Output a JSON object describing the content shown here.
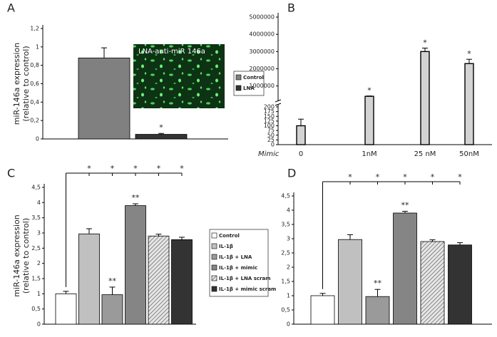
{
  "chart_data": [
    {
      "type": "bar",
      "panel": "A",
      "ylabel": [
        "miR-146a  expression",
        "(relative to control)"
      ],
      "ylim": [
        0,
        1.2
      ],
      "yticks": [
        0,
        {
          "value": 0.2,
          "label": "0,2"
        },
        {
          "value": 0.4,
          "label": "0,4"
        },
        {
          "value": 0.6,
          "label": "0,6"
        },
        {
          "value": 0.8,
          "label": "0,8"
        },
        1,
        {
          "value": 1.2,
          "label": "1,2"
        }
      ],
      "series": [
        {
          "name": "Control",
          "color": "#808080",
          "values": [
            0.88
          ],
          "errors": [
            0.11
          ]
        },
        {
          "name": "LNA",
          "color": "#333333",
          "values": [
            0.05
          ],
          "errors": [
            0.01
          ]
        }
      ],
      "annotations": [
        {
          "text": "*",
          "series": 1
        }
      ],
      "inset_label": "LNA-anti-miR 146a"
    },
    {
      "type": "broken-bar",
      "panel": "B",
      "xlabel": "Mimic",
      "categories": [
        "0",
        "1nM",
        "25 nM",
        "50nM"
      ],
      "values": [
        100,
        400000,
        3000000,
        2300000
      ],
      "errors": [
        35,
        20000,
        200000,
        250000
      ],
      "color": "#d3d3d3",
      "axis_break": {
        "lower": {
          "ylim": [
            0,
            200
          ],
          "yticks": [
            0,
            25,
            50,
            75,
            100,
            125,
            150,
            175,
            200
          ]
        },
        "upper": {
          "ylim": [
            200000,
            5000000
          ],
          "yticks": [
            1000000,
            2000000,
            3000000,
            4000000,
            5000000
          ]
        }
      },
      "annotations": [
        {
          "text": "*",
          "index": 1
        },
        {
          "text": "*",
          "index": 2
        },
        {
          "text": "*",
          "index": 3
        }
      ]
    },
    {
      "type": "bar",
      "panel": "C",
      "ylabel": [
        "miR-146a  expression",
        "(relative to control)"
      ],
      "ylim": [
        0,
        4.5
      ],
      "yticks": [
        0,
        {
          "value": 0.5,
          "label": "0,5"
        },
        1,
        {
          "value": 1.5,
          "label": "1,5"
        },
        2,
        {
          "value": 2.5,
          "label": "2,5"
        },
        3,
        {
          "value": 3.5,
          "label": "3,5"
        },
        4,
        {
          "value": 4.5,
          "label": "4,5"
        }
      ],
      "series": [
        {
          "name": "Control",
          "color": "#ffffff",
          "values": [
            1.0
          ],
          "errors": [
            0.08
          ]
        },
        {
          "name": "IL-1β",
          "color": "#c0c0c0",
          "values": [
            2.97
          ],
          "errors": [
            0.17
          ]
        },
        {
          "name": "IL-1β + LNA",
          "color": "#9a9a9a",
          "values": [
            0.97
          ],
          "errors": [
            0.25
          ]
        },
        {
          "name": "IL-1β + mimic",
          "color": "#858585",
          "values": [
            3.9
          ],
          "errors": [
            0.06
          ]
        },
        {
          "name": "IL-1β + LNA scram",
          "color": "#bdbdbd",
          "hatch": true,
          "values": [
            2.9
          ],
          "errors": [
            0.06
          ]
        },
        {
          "name": "IL-1β + mimic scram",
          "color": "#333333",
          "values": [
            2.78
          ],
          "errors": [
            0.08
          ]
        }
      ],
      "annotations": [
        {
          "text": "**",
          "series": 2
        },
        {
          "text": "**",
          "series": 3
        }
      ],
      "comparisons": {
        "reference": 0,
        "targets": [
          {
            "series": 1,
            "text": "*"
          },
          {
            "series": 2,
            "text": "*"
          },
          {
            "series": 3,
            "text": "*"
          },
          {
            "series": 4,
            "text": "*"
          },
          {
            "series": 5,
            "text": "*"
          }
        ]
      }
    },
    {
      "type": "bar",
      "panel": "D",
      "ylim": [
        0,
        4.5
      ],
      "yticks": [
        0,
        {
          "value": 0.5,
          "label": "0,5"
        },
        1,
        {
          "value": 1.5,
          "label": "1,5"
        },
        2,
        {
          "value": 2.5,
          "label": "2,5"
        },
        3,
        {
          "value": 3.5,
          "label": "3,5"
        },
        4,
        {
          "value": 4.5,
          "label": "4,5"
        }
      ],
      "series": [
        {
          "color": "#ffffff",
          "values": [
            1.0
          ],
          "errors": [
            0.08
          ]
        },
        {
          "color": "#c0c0c0",
          "values": [
            2.97
          ],
          "errors": [
            0.17
          ]
        },
        {
          "color": "#9a9a9a",
          "values": [
            0.97
          ],
          "errors": [
            0.25
          ]
        },
        {
          "color": "#858585",
          "values": [
            3.9
          ],
          "errors": [
            0.06
          ]
        },
        {
          "color": "#bdbdbd",
          "hatch": true,
          "values": [
            2.9
          ],
          "errors": [
            0.06
          ]
        },
        {
          "color": "#333333",
          "values": [
            2.78
          ],
          "errors": [
            0.08
          ]
        }
      ],
      "annotations": [
        {
          "text": "**",
          "series": 2
        },
        {
          "text": "**",
          "series": 3
        }
      ],
      "comparisons": {
        "reference": 0,
        "targets": [
          {
            "series": 1,
            "text": "*"
          },
          {
            "series": 2,
            "text": "*"
          },
          {
            "series": 3,
            "text": "*"
          },
          {
            "series": 4,
            "text": "*"
          },
          {
            "series": 5,
            "text": "*"
          }
        ]
      }
    }
  ]
}
